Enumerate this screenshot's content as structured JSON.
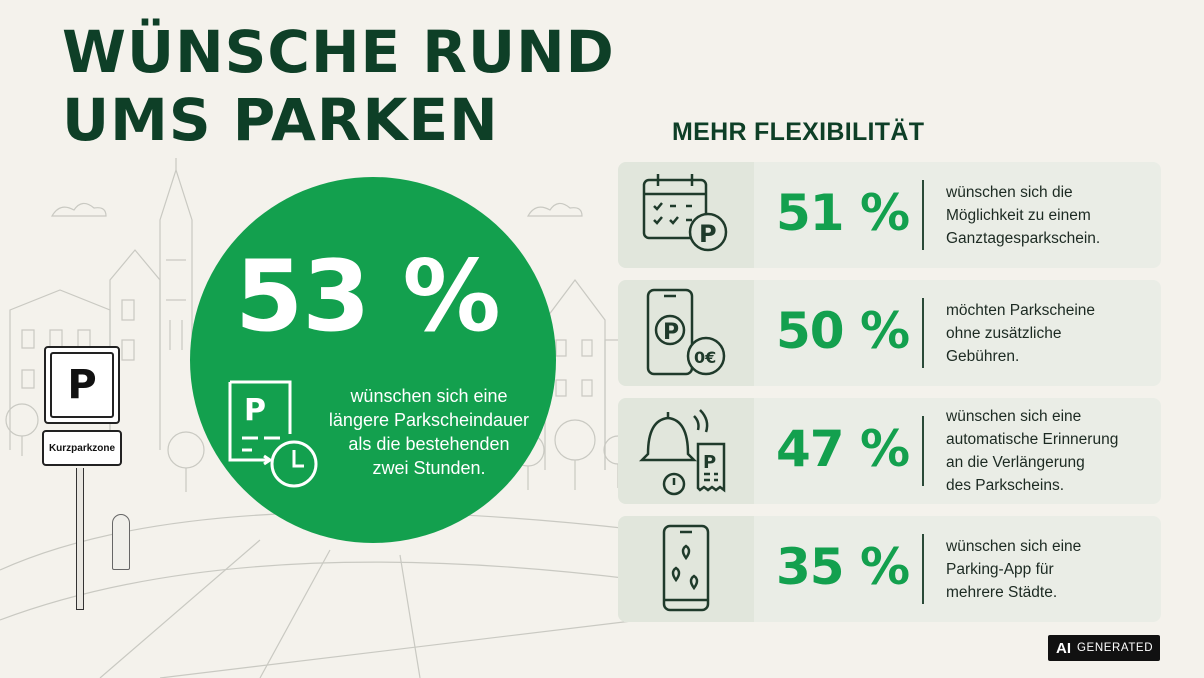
{
  "title": {
    "line1": "WÜNSCHE RUND",
    "line2": "UMS PARKEN"
  },
  "sign": {
    "letter": "P",
    "zone_label": "Kurzparkzone"
  },
  "highlight": {
    "percent": "53 %",
    "icon": "parking-ticket-clock-icon",
    "text": [
      "wünschen sich eine",
      "längere Parkscheindauer",
      "als die bestehenden",
      "zwei Stunden."
    ]
  },
  "section": {
    "title": "MEHR FLEXIBILITÄT"
  },
  "items": [
    {
      "percent": "51 %",
      "icon": "calendar-parking-icon",
      "text": [
        "wünschen sich die",
        "Möglichkeit zu einem",
        "Ganztagesparkschein."
      ]
    },
    {
      "percent": "50 %",
      "icon": "phone-parking-zero-euro-icon",
      "icon_text": "0€",
      "text": [
        "möchten Parkscheine",
        "ohne zusätzliche",
        "Gebühren."
      ]
    },
    {
      "percent": "47 %",
      "icon": "bell-reminder-ticket-icon",
      "text": [
        "wünschen sich eine",
        "automatische Erinnerung",
        "an die Verlängerung",
        "des Parkscheins."
      ]
    },
    {
      "percent": "35 %",
      "icon": "phone-map-pins-icon",
      "text": [
        "wünschen sich eine",
        "Parking-App für",
        "mehrere Städte."
      ]
    }
  ],
  "badge": {
    "ai": "AI",
    "generated": "GENERATED"
  },
  "colors": {
    "green": "#13a04e",
    "dark_green": "#0e3f27",
    "background": "#f4f2ec",
    "card": "#eaede6"
  }
}
